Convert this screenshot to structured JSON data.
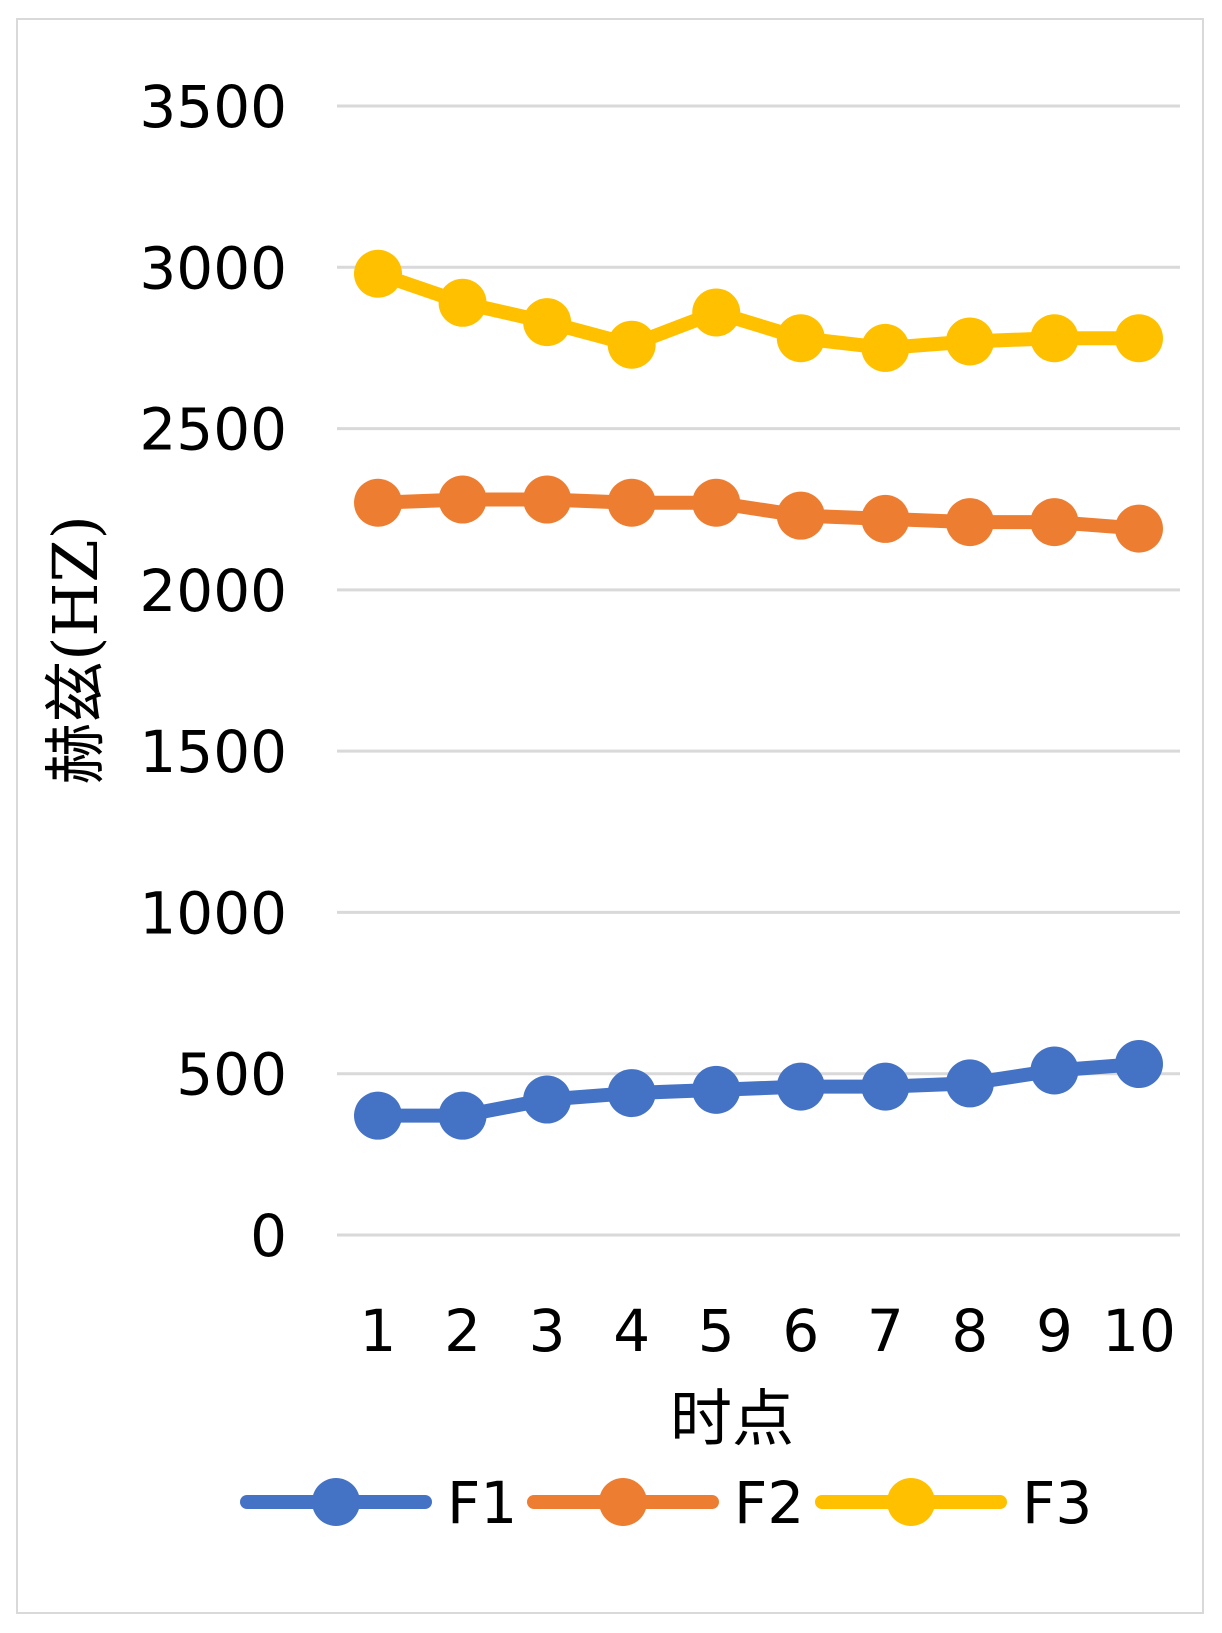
{
  "chart_data": {
    "type": "line",
    "title": "",
    "xlabel": "时点",
    "ylabel": "赫兹(HZ)",
    "x": [
      1,
      2,
      3,
      4,
      5,
      6,
      7,
      8,
      9,
      10
    ],
    "x_tick_labels": [
      "1",
      "2",
      "3",
      "4",
      "5",
      "6",
      "7",
      "8",
      "9",
      "10"
    ],
    "y_ticks": [
      0,
      500,
      1000,
      1500,
      2000,
      2500,
      3000,
      3500
    ],
    "y_tick_labels": [
      "0",
      "500",
      "1000",
      "1500",
      "2000",
      "2500",
      "3000",
      "3500"
    ],
    "ylim": [
      0,
      3500
    ],
    "grid": true,
    "legend_position": "bottom",
    "series": [
      {
        "name": "F1",
        "color": "#4472c4",
        "values": [
          370,
          370,
          420,
          440,
          450,
          460,
          460,
          470,
          510,
          530
        ]
      },
      {
        "name": "F2",
        "color": "#ed7d31",
        "values": [
          2270,
          2280,
          2280,
          2270,
          2270,
          2230,
          2220,
          2210,
          2210,
          2190
        ]
      },
      {
        "name": "F3",
        "color": "#ffc000",
        "values": [
          2980,
          2890,
          2830,
          2760,
          2860,
          2780,
          2750,
          2770,
          2780,
          2780
        ]
      }
    ]
  }
}
